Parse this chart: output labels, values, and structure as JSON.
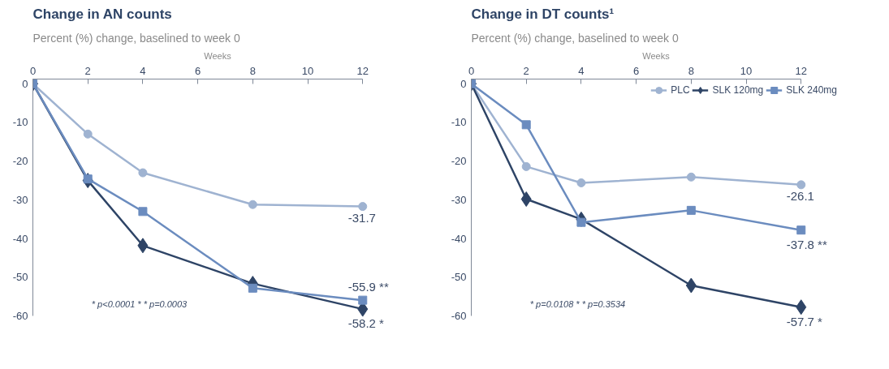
{
  "chart_data": [
    {
      "type": "line",
      "title": "Change in AN counts",
      "subtitle": "Percent (%) change, baselined to week 0",
      "xlabel": "Weeks",
      "x": [
        0,
        2,
        4,
        8,
        12
      ],
      "xlim": [
        0,
        12
      ],
      "xticks": [
        0,
        2,
        4,
        6,
        8,
        10,
        12
      ],
      "ylim": [
        -60,
        0
      ],
      "yticks": [
        0,
        -10,
        -20,
        -30,
        -40,
        -50,
        -60
      ],
      "grid": false,
      "line_style": "solid",
      "series": [
        {
          "color": "#9fb3d1",
          "marker": "circle",
          "values": [
            0,
            -13,
            -23,
            -31.2,
            -31.7
          ],
          "value_labels": [
            null,
            null,
            null,
            null,
            "-31.7"
          ]
        },
        {
          "color": "#2e4466",
          "marker": "diamond",
          "values": [
            0,
            -25,
            -41.8,
            -51.6,
            -58.2
          ],
          "value_labels": [
            null,
            null,
            null,
            null,
            "-58.2 *"
          ]
        },
        {
          "color": "#6b8cbf",
          "marker": "square",
          "values": [
            0,
            -24.6,
            -33,
            -52.8,
            -55.9
          ],
          "value_labels": [
            null,
            null,
            null,
            null,
            "-55.9 **"
          ]
        }
      ],
      "annotations": [
        "* p<0.0001   * * p=0.0003"
      ]
    },
    {
      "type": "line",
      "title": "Change in DT counts¹",
      "subtitle": "Percent (%) change, baselined to week 0",
      "xlabel": "Weeks",
      "x": [
        0,
        2,
        4,
        8,
        12
      ],
      "xlim": [
        0,
        12
      ],
      "xticks": [
        0,
        2,
        4,
        6,
        8,
        10,
        12
      ],
      "ylim": [
        -60,
        0
      ],
      "yticks": [
        0,
        -10,
        -20,
        -30,
        -40,
        -50,
        -60
      ],
      "grid": false,
      "line_style": "solid",
      "legend": "top right",
      "series": [
        {
          "name": "PLC",
          "color": "#9fb3d1",
          "marker": "circle",
          "values": [
            0,
            -21.4,
            -25.6,
            -24.1,
            -26.1
          ],
          "value_labels": [
            null,
            null,
            null,
            null,
            "-26.1"
          ]
        },
        {
          "name": "SLK 120mg",
          "color": "#2e4466",
          "marker": "diamond",
          "values": [
            0,
            -29.8,
            -35,
            -52.1,
            -57.7
          ],
          "value_labels": [
            null,
            null,
            null,
            null,
            "-57.7 *"
          ]
        },
        {
          "name": "SLK 240mg",
          "color": "#6b8cbf",
          "marker": "square",
          "values": [
            0,
            -10.6,
            -35.8,
            -32.7,
            -37.8
          ],
          "value_labels": [
            null,
            null,
            null,
            null,
            "-37.8 **"
          ]
        }
      ],
      "annotations": [
        "* p=0.0108   * * p=0.3534"
      ]
    }
  ]
}
